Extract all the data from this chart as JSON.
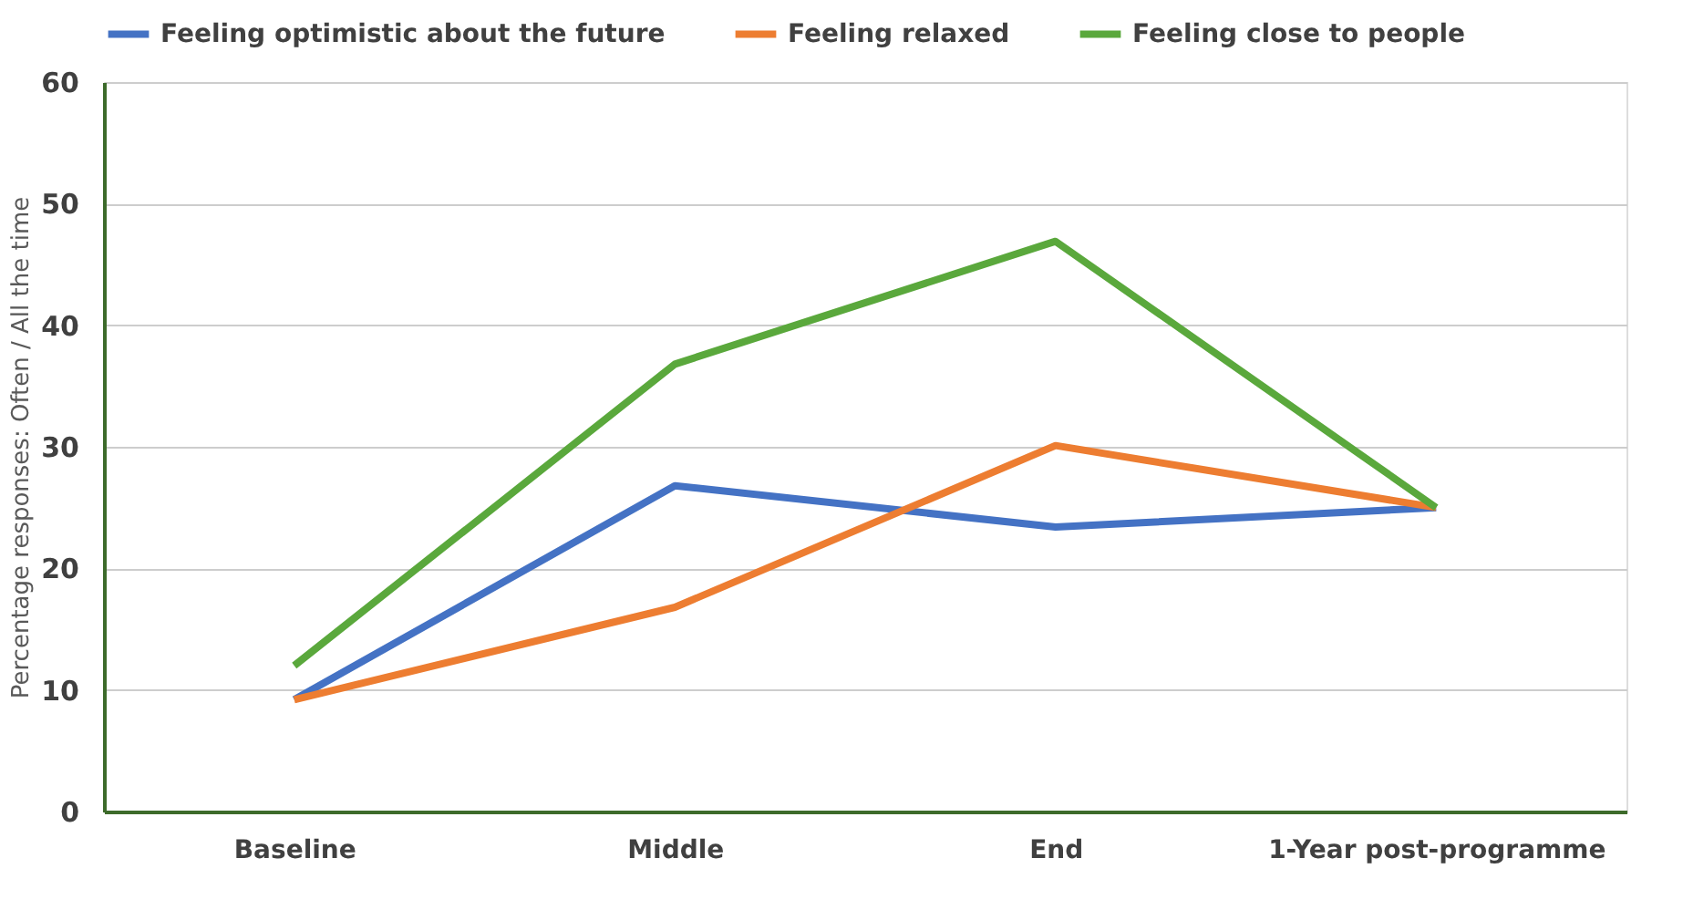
{
  "chart_data": {
    "type": "line",
    "ylabel": "Percentage responses: Often / All the time",
    "categories": [
      "Baseline",
      "Middle",
      "End",
      "1-Year post-programme"
    ],
    "series": [
      {
        "name": "Feeling optimistic about the future",
        "color": "#4472c4",
        "values": [
          9.2,
          26.8,
          23.4,
          25.0
        ]
      },
      {
        "name": "Feeling relaxed",
        "color": "#ed7d31",
        "values": [
          9.2,
          16.8,
          30.1,
          25.0
        ]
      },
      {
        "name": "Feeling close to people",
        "color": "#5aa83c",
        "values": [
          12.0,
          36.8,
          46.9,
          25.0
        ]
      }
    ],
    "ylim": [
      0,
      60
    ],
    "yticks": [
      0,
      10,
      20,
      30,
      40,
      50,
      60
    ],
    "grid": "y",
    "legend": "top",
    "marker": "none",
    "line_style": "solid"
  }
}
